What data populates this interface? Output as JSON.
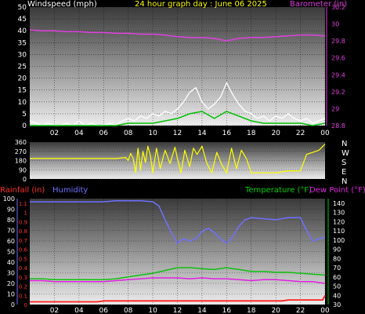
{
  "header": {
    "left_title": "Windspeed (mph)",
    "center_title": "24 hour graph day : June 06 2025",
    "right_title": "Barometer (in)"
  },
  "colors": {
    "background": "#000000",
    "plot_top": "#3c3c3c",
    "plot_bottom": "#ebebeb",
    "axis_text": "#ffffff",
    "barometer": "#e040e0",
    "wind_gust": "#ffffff",
    "wind_speed": "#00c000",
    "wind_direction": "#ffff00",
    "rain": "#ff2020",
    "humidity": "#7070ff",
    "temperature": "#10c010",
    "dewpoint": "#e020e0",
    "rain_axis": "#ff3030",
    "humidity_axis": "#7070ff",
    "temp_axis": "#00d000"
  },
  "panel_labels": {
    "rainfall": "Rainfall (in)",
    "humidity": "Humidity",
    "temperature": "Temperature (°F)",
    "dewpoint": "Dew Point (°F)"
  },
  "compass": [
    "N",
    "W",
    "S",
    "E",
    "N"
  ],
  "chart_data": [
    {
      "type": "line",
      "name": "wind_barometer",
      "x_ticks": [
        "02",
        "04",
        "06",
        "08",
        "10",
        "12",
        "14",
        "16",
        "18",
        "20",
        "22",
        "00"
      ],
      "x_range": [
        0,
        24
      ],
      "y_left_ticks": [
        "0",
        "5",
        "10",
        "15",
        "20",
        "25",
        "30",
        "35",
        "40",
        "45",
        "50"
      ],
      "y_left_range": [
        0,
        50
      ],
      "y_right_ticks": [
        "28.8",
        "29",
        "29.2",
        "29.4",
        "29.6",
        "29.8",
        "30",
        "30.2"
      ],
      "y_right_range": [
        28.8,
        30.2
      ],
      "series": [
        {
          "axis": "right",
          "x": [
            0,
            1,
            2,
            3,
            4,
            5,
            6,
            7,
            8,
            9,
            10,
            11,
            12,
            13,
            14,
            15,
            16,
            17,
            18,
            19,
            20,
            21,
            22,
            23,
            24
          ],
          "values": [
            29.93,
            29.92,
            29.92,
            29.91,
            29.91,
            29.9,
            29.9,
            29.89,
            29.89,
            29.88,
            29.88,
            29.87,
            29.85,
            29.84,
            29.84,
            29.83,
            29.8,
            29.83,
            29.84,
            29.84,
            29.85,
            29.86,
            29.87,
            29.87,
            29.86
          ]
        },
        {
          "axis": "left",
          "x": [
            0,
            0.5,
            1,
            1.5,
            2,
            2.5,
            3,
            3.5,
            4,
            4.5,
            5,
            5.5,
            6,
            6.5,
            7,
            7.5,
            8,
            8.5,
            9,
            9.5,
            10,
            10.5,
            11,
            11.5,
            12,
            12.5,
            13,
            13.5,
            14,
            14.5,
            15,
            15.5,
            16,
            16.5,
            17,
            17.5,
            18,
            18.5,
            19,
            19.5,
            20,
            20.5,
            21,
            21.5,
            22,
            22.5,
            23,
            23.5,
            24
          ],
          "values": [
            2,
            1,
            0,
            1,
            0,
            0,
            1,
            0,
            2,
            0,
            1,
            0,
            0,
            1,
            0,
            2,
            3,
            2,
            4,
            3,
            5,
            4,
            6,
            5,
            7,
            10,
            14,
            16,
            10,
            7,
            9,
            12,
            18,
            13,
            9,
            6,
            5,
            3,
            4,
            2,
            4,
            3,
            5,
            3,
            2,
            3,
            1,
            2,
            3
          ]
        },
        {
          "axis": "left",
          "x": [
            0,
            1,
            2,
            3,
            4,
            5,
            6,
            7,
            8,
            9,
            10,
            11,
            12,
            13,
            14,
            15,
            16,
            17,
            18,
            19,
            20,
            21,
            22,
            23,
            24
          ],
          "values": [
            0,
            0,
            0,
            0,
            0,
            0,
            0,
            0,
            1,
            1,
            1,
            2,
            3,
            5,
            6,
            3,
            6,
            4,
            2,
            1,
            1,
            1,
            1,
            0,
            1
          ]
        }
      ]
    },
    {
      "type": "line",
      "name": "wind_direction",
      "x_range": [
        0,
        24
      ],
      "y_ticks": [
        "360",
        "270",
        "180",
        "90",
        "0"
      ],
      "y_range": [
        0,
        360
      ],
      "series": [
        {
          "x": [
            0,
            1,
            2,
            3,
            4,
            5,
            6,
            7,
            7.8,
            8,
            8.2,
            8.4,
            8.6,
            8.8,
            9,
            9.2,
            9.4,
            9.6,
            9.8,
            10,
            10.3,
            10.6,
            11,
            11.4,
            11.8,
            12,
            12.3,
            12.6,
            13,
            13.3,
            13.6,
            14,
            14.4,
            14.8,
            15.2,
            15.6,
            16,
            16.4,
            16.8,
            17.2,
            17.6,
            18,
            18.5,
            19,
            19.5,
            20,
            20.5,
            21,
            21.5,
            22,
            22.5,
            23,
            23.5,
            24
          ],
          "values": [
            200,
            200,
            200,
            200,
            200,
            200,
            200,
            200,
            210,
            180,
            250,
            200,
            60,
            300,
            90,
            270,
            160,
            320,
            230,
            60,
            300,
            100,
            280,
            150,
            310,
            200,
            60,
            280,
            120,
            300,
            240,
            320,
            150,
            60,
            260,
            140,
            60,
            300,
            100,
            280,
            200,
            60,
            60,
            60,
            60,
            60,
            70,
            80,
            80,
            80,
            240,
            260,
            280,
            340
          ]
        }
      ]
    },
    {
      "type": "line",
      "name": "rain_humidity_temp",
      "x_ticks": [
        "02",
        "04",
        "06",
        "08",
        "10",
        "12",
        "14",
        "16",
        "18",
        "20",
        "22",
        "00"
      ],
      "x_range": [
        0,
        24
      ],
      "y_humidity_ticks": [
        "0",
        "10",
        "20",
        "30",
        "40",
        "50",
        "60",
        "70",
        "80",
        "90",
        "100"
      ],
      "y_humidity_range": [
        0,
        100
      ],
      "y_rain_ticks": [
        "0",
        "0.1",
        "0.2",
        "0.3",
        "0.4",
        "0.5",
        "0.6",
        "0.7",
        "0.8",
        "0.9",
        "1",
        "1.1"
      ],
      "y_rain_range": [
        0,
        1.15
      ],
      "y_temp_ticks": [
        "30",
        "40",
        "50",
        "60",
        "70",
        "80",
        "90",
        "100",
        "110",
        "120",
        "130",
        "140"
      ],
      "y_temp_range": [
        30,
        145
      ],
      "series": [
        {
          "axis": "humidity",
          "x": [
            0,
            1,
            2,
            3,
            4,
            5,
            6,
            7,
            8,
            9,
            10,
            10.5,
            11,
            11.5,
            12,
            12.5,
            13,
            13.5,
            14,
            14.5,
            15,
            15.5,
            16,
            16.5,
            17,
            17.5,
            18,
            19,
            20,
            21,
            22,
            22.5,
            23,
            23.5,
            24
          ],
          "values": [
            97,
            97,
            97,
            97,
            97,
            97,
            97,
            98,
            98,
            98,
            97,
            93,
            80,
            68,
            58,
            62,
            60,
            62,
            69,
            72,
            68,
            62,
            58,
            64,
            74,
            80,
            82,
            81,
            80,
            82,
            82,
            70,
            60,
            62,
            64
          ]
        },
        {
          "axis": "temp",
          "x": [
            0,
            1,
            2,
            3,
            4,
            5,
            6,
            7,
            8,
            9,
            10,
            11,
            12,
            13,
            14,
            15,
            16,
            17,
            18,
            19,
            20,
            21,
            22,
            23,
            24
          ],
          "values": [
            58,
            58,
            57,
            57,
            57,
            57,
            57,
            58,
            60,
            62,
            64,
            67,
            70,
            70,
            69,
            68,
            70,
            68,
            66,
            66,
            65,
            65,
            64,
            63,
            62
          ]
        },
        {
          "axis": "temp",
          "x": [
            0,
            1,
            2,
            3,
            4,
            5,
            6,
            7,
            8,
            9,
            10,
            11,
            12,
            13,
            14,
            15,
            16,
            17,
            18,
            19,
            20,
            21,
            22,
            23,
            24
          ],
          "values": [
            56,
            56,
            55,
            55,
            55,
            55,
            55,
            56,
            57,
            58,
            59,
            59,
            59,
            58,
            59,
            58,
            58,
            57,
            56,
            57,
            57,
            56,
            55,
            55,
            53
          ]
        },
        {
          "axis": "rain",
          "x": [
            0,
            1,
            2,
            3,
            4,
            5,
            5.5,
            6,
            7,
            8,
            9,
            10,
            11,
            12,
            13,
            14,
            15,
            16,
            17,
            18,
            19,
            20,
            20.5,
            21,
            22,
            23,
            23.8,
            24
          ],
          "values": [
            0.03,
            0.03,
            0.03,
            0.03,
            0.03,
            0.03,
            0.03,
            0.04,
            0.04,
            0.04,
            0.04,
            0.04,
            0.04,
            0.04,
            0.04,
            0.04,
            0.04,
            0.04,
            0.04,
            0.04,
            0.04,
            0.04,
            0.04,
            0.05,
            0.05,
            0.05,
            0.05,
            0.1
          ]
        }
      ]
    }
  ]
}
